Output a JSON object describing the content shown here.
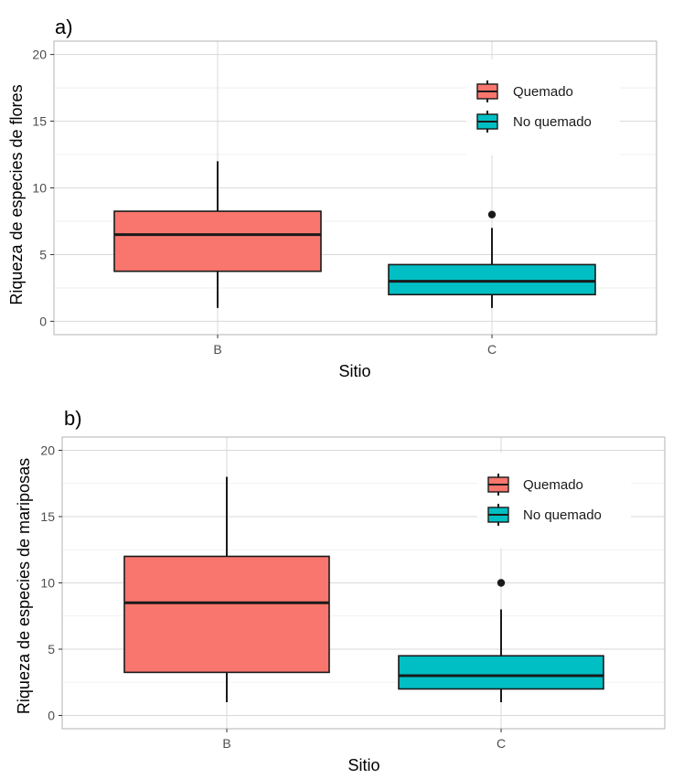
{
  "colors": {
    "quemado": "#F8766D",
    "no_quemado": "#00BFC4",
    "outline": "#1a1a1a",
    "grid_major": "#d9d9d9",
    "grid_minor": "#ededed",
    "panel_border": "#b3b3b3"
  },
  "chart_data": [
    {
      "type": "boxplot",
      "panel_label": "a)",
      "xlabel": "Sitio",
      "ylabel": "Riqueza de especies de flores",
      "ylim": [
        -1,
        21
      ],
      "yticks": [
        0,
        5,
        10,
        15,
        20
      ],
      "categories": [
        "B",
        "C"
      ],
      "legend": {
        "position": "top-right",
        "entries": [
          "Quemado",
          "No quemado"
        ]
      },
      "boxes": [
        {
          "category": "B",
          "group": "Quemado",
          "min": 1,
          "q1": 3.75,
          "median": 6.5,
          "q3": 8.25,
          "max": 12,
          "outliers": []
        },
        {
          "category": "C",
          "group": "No quemado",
          "min": 1,
          "q1": 2,
          "median": 3,
          "q3": 4.25,
          "max": 7,
          "outliers": [
            8
          ]
        }
      ]
    },
    {
      "type": "boxplot",
      "panel_label": "b)",
      "xlabel": "Sitio",
      "ylabel": "Riqueza de especies de mariposas",
      "ylim": [
        -1,
        21
      ],
      "yticks": [
        0,
        5,
        10,
        15,
        20
      ],
      "categories": [
        "B",
        "C"
      ],
      "legend": {
        "position": "top-right",
        "entries": [
          "Quemado",
          "No quemado"
        ]
      },
      "boxes": [
        {
          "category": "B",
          "group": "Quemado",
          "min": 1,
          "q1": 3.25,
          "median": 8.5,
          "q3": 12,
          "max": 18,
          "outliers": []
        },
        {
          "category": "C",
          "group": "No quemado",
          "min": 1,
          "q1": 2,
          "median": 3,
          "q3": 4.5,
          "max": 8,
          "outliers": [
            10
          ]
        }
      ]
    }
  ]
}
